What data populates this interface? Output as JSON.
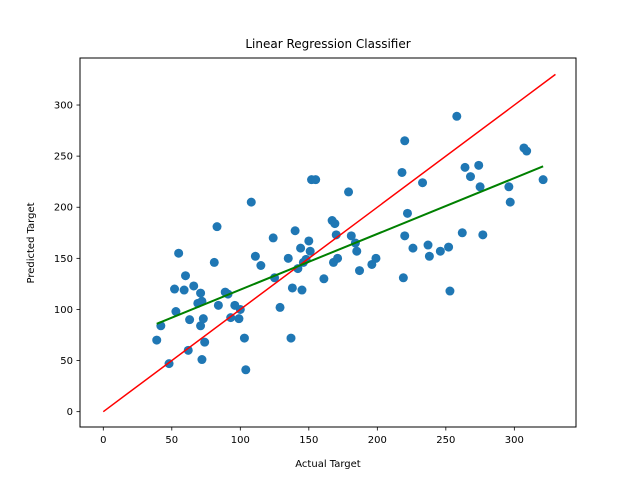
{
  "chart_data": {
    "type": "scatter",
    "title": "Linear Regression Classifier",
    "xlabel": "Actual Target",
    "ylabel": "Predicted Target",
    "xlim": [
      -17,
      345
    ],
    "ylim": [
      -15,
      346
    ],
    "xticks": [
      0,
      50,
      100,
      150,
      200,
      250,
      300
    ],
    "yticks": [
      0,
      50,
      100,
      150,
      200,
      250,
      300
    ],
    "grid": false,
    "colors": {
      "points": "#1f77b4",
      "identity_line": "#ff0000",
      "fit_line": "#008000"
    },
    "points": [
      [
        39,
        70
      ],
      [
        42,
        84
      ],
      [
        48,
        47
      ],
      [
        52,
        120
      ],
      [
        53,
        98
      ],
      [
        55,
        155
      ],
      [
        59,
        119
      ],
      [
        60,
        133
      ],
      [
        62,
        60
      ],
      [
        63,
        90
      ],
      [
        66,
        123
      ],
      [
        69,
        106
      ],
      [
        71,
        84
      ],
      [
        71,
        116
      ],
      [
        72,
        51
      ],
      [
        72,
        108
      ],
      [
        73,
        91
      ],
      [
        74,
        68
      ],
      [
        81,
        146
      ],
      [
        83,
        181
      ],
      [
        84,
        104
      ],
      [
        89,
        117
      ],
      [
        91,
        115
      ],
      [
        93,
        92
      ],
      [
        96,
        104
      ],
      [
        99,
        91
      ],
      [
        100,
        100
      ],
      [
        103,
        72
      ],
      [
        104,
        41
      ],
      [
        108,
        205
      ],
      [
        111,
        152
      ],
      [
        115,
        143
      ],
      [
        124,
        170
      ],
      [
        125,
        131
      ],
      [
        129,
        102
      ],
      [
        135,
        150
      ],
      [
        137,
        72
      ],
      [
        138,
        121
      ],
      [
        140,
        177
      ],
      [
        142,
        140
      ],
      [
        144,
        160
      ],
      [
        145,
        119
      ],
      [
        146,
        146
      ],
      [
        148,
        149
      ],
      [
        150,
        167
      ],
      [
        151,
        157
      ],
      [
        152,
        227
      ],
      [
        155,
        227
      ],
      [
        161,
        130
      ],
      [
        167,
        187
      ],
      [
        168,
        146
      ],
      [
        169,
        184
      ],
      [
        170,
        173
      ],
      [
        171,
        150
      ],
      [
        179,
        215
      ],
      [
        181,
        172
      ],
      [
        184,
        165
      ],
      [
        185,
        157
      ],
      [
        187,
        138
      ],
      [
        196,
        144
      ],
      [
        199,
        150
      ],
      [
        218,
        234
      ],
      [
        219,
        131
      ],
      [
        220,
        172
      ],
      [
        220,
        265
      ],
      [
        222,
        194
      ],
      [
        226,
        160
      ],
      [
        233,
        224
      ],
      [
        237,
        163
      ],
      [
        238,
        152
      ],
      [
        246,
        157
      ],
      [
        252,
        161
      ],
      [
        253,
        118
      ],
      [
        258,
        289
      ],
      [
        262,
        175
      ],
      [
        264,
        239
      ],
      [
        268,
        230
      ],
      [
        274,
        241
      ],
      [
        275,
        220
      ],
      [
        277,
        173
      ],
      [
        296,
        220
      ],
      [
        297,
        205
      ],
      [
        307,
        258
      ],
      [
        309,
        255
      ],
      [
        321,
        227
      ]
    ],
    "identity_line": {
      "x": [
        0,
        330
      ],
      "y": [
        0,
        330
      ]
    },
    "fit_line": {
      "x": [
        39,
        321
      ],
      "y": [
        86,
        240
      ]
    }
  }
}
